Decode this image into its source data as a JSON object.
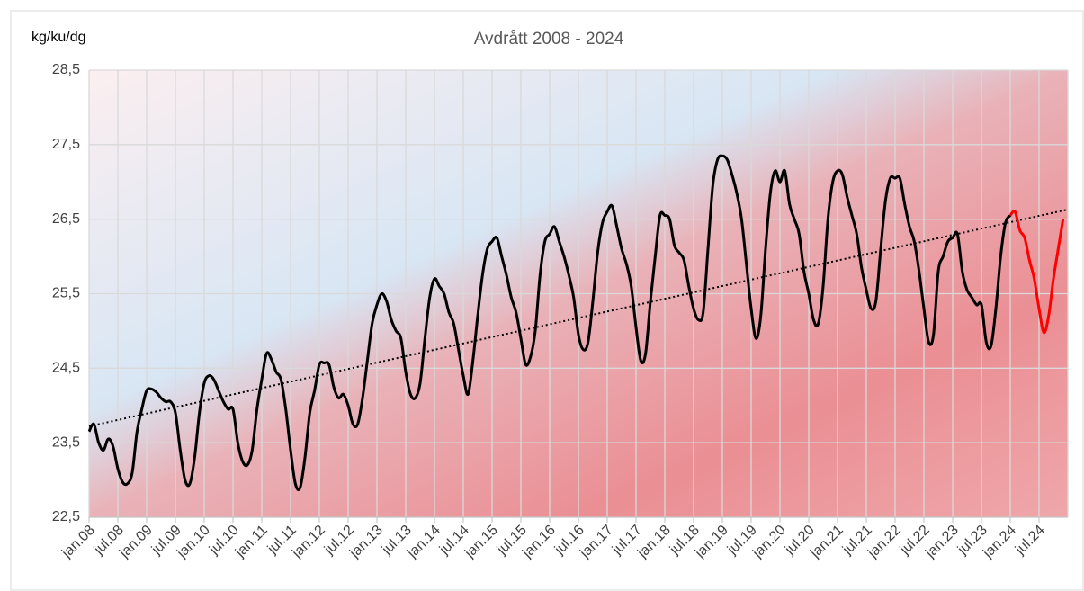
{
  "chart_data": {
    "type": "line",
    "title": "Avdrått 2008 - 2024",
    "y_label": "kg/ku/dg",
    "categories": [
      "jan.08",
      null,
      null,
      null,
      null,
      null,
      "jul.08",
      null,
      null,
      null,
      null,
      null,
      "jan.09",
      null,
      null,
      null,
      null,
      null,
      "jul.09",
      null,
      null,
      null,
      null,
      null,
      "jan.10",
      null,
      null,
      null,
      null,
      null,
      "jul.10",
      null,
      null,
      null,
      null,
      null,
      "jan.11",
      null,
      null,
      null,
      null,
      null,
      "jul.11",
      null,
      null,
      null,
      null,
      null,
      "jan.12",
      null,
      null,
      null,
      null,
      null,
      "jul.12",
      null,
      null,
      null,
      null,
      null,
      "jan.13",
      null,
      null,
      null,
      null,
      null,
      "jul.13",
      null,
      null,
      null,
      null,
      null,
      "jan.14",
      null,
      null,
      null,
      null,
      null,
      "jul.14",
      null,
      null,
      null,
      null,
      null,
      "jan.15",
      null,
      null,
      null,
      null,
      null,
      "jul.15",
      null,
      null,
      null,
      null,
      null,
      "jan.16",
      null,
      null,
      null,
      null,
      null,
      "jul.16",
      null,
      null,
      null,
      null,
      null,
      "jan.17",
      null,
      null,
      null,
      null,
      null,
      "jul.17",
      null,
      null,
      null,
      null,
      null,
      "jan.18",
      null,
      null,
      null,
      null,
      null,
      "jul.18",
      null,
      null,
      null,
      null,
      null,
      "jan.19",
      null,
      null,
      null,
      null,
      null,
      "jul.19",
      null,
      null,
      null,
      null,
      null,
      "jan.20",
      null,
      null,
      null,
      null,
      null,
      "jul.20",
      null,
      null,
      null,
      null,
      null,
      "jan.21",
      null,
      null,
      null,
      null,
      null,
      "jul.21",
      null,
      null,
      null,
      null,
      null,
      "jan.22",
      null,
      null,
      null,
      null,
      null,
      "jul.22",
      null,
      null,
      null,
      null,
      null,
      "jan.23",
      null,
      null,
      null,
      null,
      null,
      "jul.23",
      null,
      null,
      null,
      null,
      null,
      "jan.24",
      null,
      null,
      null,
      null,
      null,
      "jul.24",
      null,
      null,
      null,
      null,
      null
    ],
    "series": [
      {
        "color": "#000000",
        "values": [
          23.65,
          23.75,
          23.5,
          23.4,
          23.55,
          23.45,
          23.15,
          22.97,
          22.95,
          23.1,
          23.65,
          23.95,
          24.2,
          24.22,
          24.18,
          24.1,
          24.05,
          24.05,
          23.9,
          23.4,
          23.0,
          22.95,
          23.3,
          23.9,
          24.3,
          24.4,
          24.35,
          24.2,
          24.05,
          23.95,
          23.95,
          23.5,
          23.25,
          23.2,
          23.4,
          23.95,
          24.35,
          24.7,
          24.62,
          24.45,
          24.35,
          23.95,
          23.4,
          22.95,
          22.9,
          23.3,
          23.9,
          24.2,
          24.55,
          24.57,
          24.55,
          24.25,
          24.1,
          24.15,
          24.0,
          23.75,
          23.75,
          24.1,
          24.6,
          25.1,
          25.35,
          25.5,
          25.4,
          25.15,
          25.0,
          24.9,
          24.45,
          24.15,
          24.1,
          24.3,
          24.9,
          25.45,
          25.7,
          25.6,
          25.5,
          25.25,
          25.1,
          24.75,
          24.4,
          24.15,
          24.6,
          25.2,
          25.75,
          26.1,
          26.2,
          26.25,
          26.0,
          25.75,
          25.45,
          25.25,
          24.9,
          24.55,
          24.65,
          25.0,
          25.75,
          26.2,
          26.3,
          26.4,
          26.2,
          26.0,
          25.75,
          25.45,
          24.95,
          24.75,
          24.85,
          25.4,
          26.05,
          26.45,
          26.6,
          26.68,
          26.4,
          26.1,
          25.9,
          25.6,
          25.05,
          24.6,
          24.7,
          25.4,
          26.0,
          26.55,
          26.55,
          26.5,
          26.15,
          26.05,
          25.95,
          25.6,
          25.3,
          25.15,
          25.25,
          26.1,
          26.95,
          27.3,
          27.35,
          27.3,
          27.1,
          26.85,
          26.5,
          25.9,
          25.3,
          24.9,
          25.2,
          26.1,
          26.85,
          27.15,
          27.0,
          27.15,
          26.7,
          26.5,
          26.3,
          25.8,
          25.5,
          25.15,
          25.1,
          25.6,
          26.5,
          27.0,
          27.15,
          27.1,
          26.8,
          26.55,
          26.3,
          25.85,
          25.55,
          25.3,
          25.4,
          26.1,
          26.75,
          27.05,
          27.05,
          27.05,
          26.7,
          26.4,
          26.2,
          25.8,
          25.3,
          24.85,
          24.95,
          25.8,
          26.0,
          26.2,
          26.25,
          26.3,
          25.8,
          25.55,
          25.45,
          25.35,
          25.35,
          24.85,
          24.8,
          25.3,
          26.0,
          26.45,
          26.55,
          null,
          null,
          null,
          null,
          null,
          null,
          null,
          null,
          null,
          null,
          null
        ]
      },
      {
        "color": "#ff0000",
        "values": [
          null,
          null,
          null,
          null,
          null,
          null,
          null,
          null,
          null,
          null,
          null,
          null,
          null,
          null,
          null,
          null,
          null,
          null,
          null,
          null,
          null,
          null,
          null,
          null,
          null,
          null,
          null,
          null,
          null,
          null,
          null,
          null,
          null,
          null,
          null,
          null,
          null,
          null,
          null,
          null,
          null,
          null,
          null,
          null,
          null,
          null,
          null,
          null,
          null,
          null,
          null,
          null,
          null,
          null,
          null,
          null,
          null,
          null,
          null,
          null,
          null,
          null,
          null,
          null,
          null,
          null,
          null,
          null,
          null,
          null,
          null,
          null,
          null,
          null,
          null,
          null,
          null,
          null,
          null,
          null,
          null,
          null,
          null,
          null,
          null,
          null,
          null,
          null,
          null,
          null,
          null,
          null,
          null,
          null,
          null,
          null,
          null,
          null,
          null,
          null,
          null,
          null,
          null,
          null,
          null,
          null,
          null,
          null,
          null,
          null,
          null,
          null,
          null,
          null,
          null,
          null,
          null,
          null,
          null,
          null,
          null,
          null,
          null,
          null,
          null,
          null,
          null,
          null,
          null,
          null,
          null,
          null,
          null,
          null,
          null,
          null,
          null,
          null,
          null,
          null,
          null,
          null,
          null,
          null,
          null,
          null,
          null,
          null,
          null,
          null,
          null,
          null,
          null,
          null,
          null,
          null,
          null,
          null,
          null,
          null,
          null,
          null,
          null,
          null,
          null,
          null,
          null,
          null,
          null,
          null,
          null,
          null,
          null,
          null,
          null,
          null,
          null,
          null,
          null,
          null,
          null,
          null,
          null,
          null,
          null,
          null,
          null,
          null,
          null,
          null,
          null,
          null,
          26.55,
          26.6,
          26.35,
          26.25,
          25.95,
          25.7,
          25.3,
          24.98,
          25.2,
          25.7,
          26.1,
          26.5
        ]
      }
    ],
    "trendline": {
      "start": 23.72,
      "end": 26.63,
      "color": "#000000"
    },
    "ylim": [
      22.5,
      28.5
    ],
    "yticks": [
      {
        "value": 22.5,
        "label": "22,5"
      },
      {
        "value": 23.5,
        "label": "23,5"
      },
      {
        "value": 24.5,
        "label": "24,5"
      },
      {
        "value": 25.5,
        "label": "25,5"
      },
      {
        "value": 26.5,
        "label": "26,5"
      },
      {
        "value": 27.5,
        "label": "27,5"
      },
      {
        "value": 28.5,
        "label": "28,5"
      }
    ],
    "grid": true
  }
}
